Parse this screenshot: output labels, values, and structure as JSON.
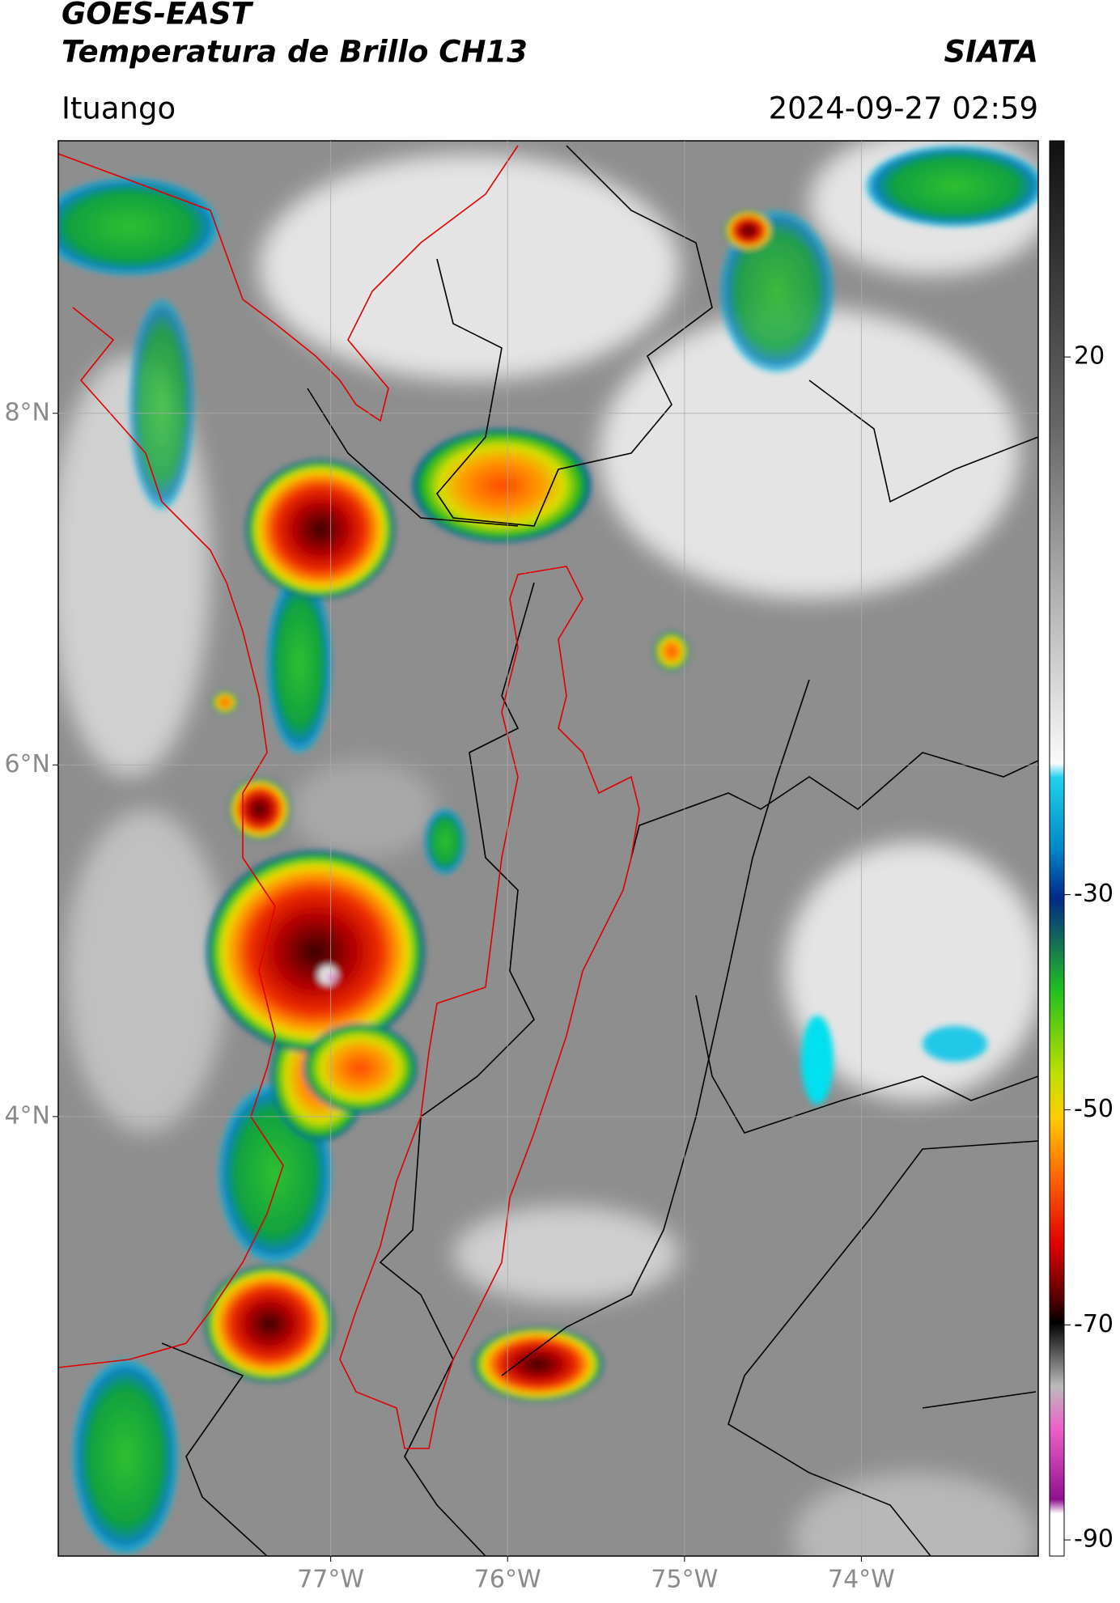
{
  "header": {
    "title": "GOES-EAST",
    "subtitle": "Temperatura de Brillo CH13",
    "source": "SIATA",
    "location": "Ituango",
    "timestamp": "2024-09-27 02:59"
  },
  "map": {
    "xlim": [
      -78.54,
      -73.0
    ],
    "ylim": [
      1.5,
      9.55
    ],
    "xticks": [
      {
        "value": -77,
        "label": "77°W"
      },
      {
        "value": -76,
        "label": "76°W"
      },
      {
        "value": -75,
        "label": "75°W"
      },
      {
        "value": -74,
        "label": "74°W"
      }
    ],
    "yticks": [
      {
        "value": 8,
        "label": "8°N"
      },
      {
        "value": 6,
        "label": "6°N"
      },
      {
        "value": 4,
        "label": "4°N"
      }
    ],
    "grid": true
  },
  "colorbar": {
    "lim": [
      -91.5,
      40.1
    ],
    "ticks": [
      20,
      -30,
      -50,
      -70,
      -90
    ]
  }
}
